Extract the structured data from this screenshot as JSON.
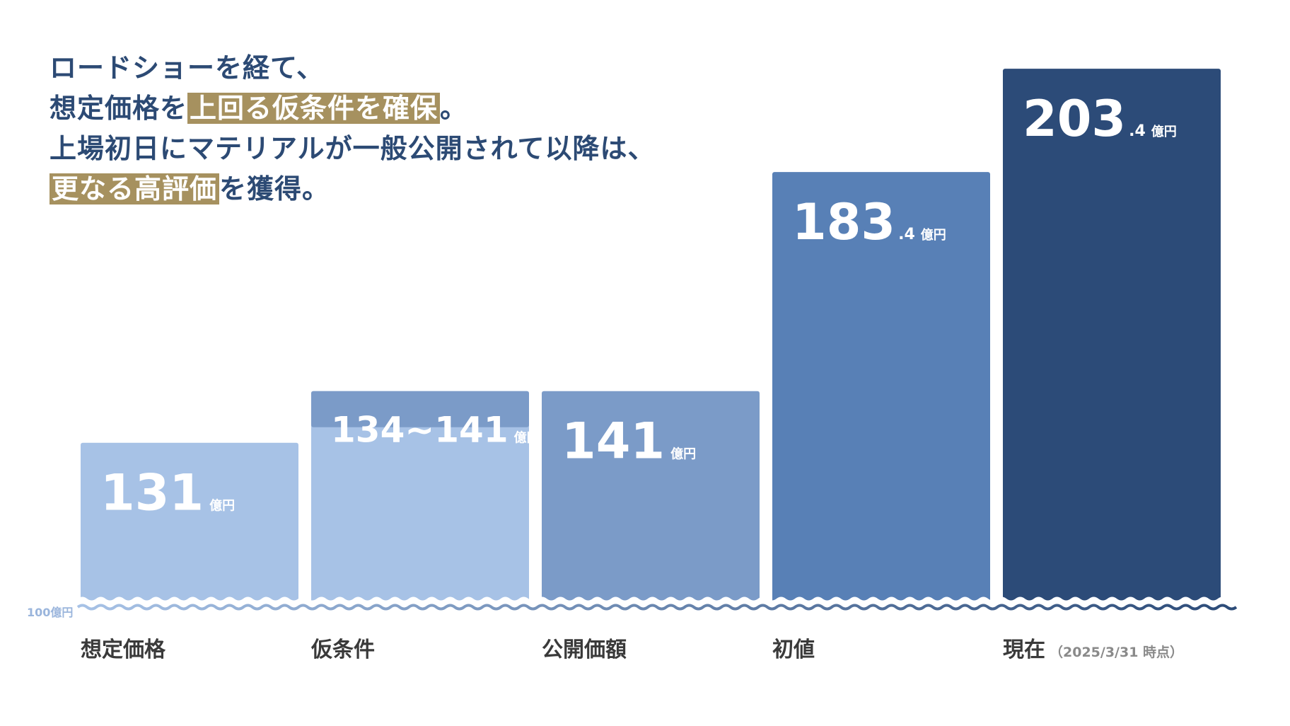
{
  "headline": {
    "line1": "ロードショーを経て、",
    "line2_pre": "想定価格を",
    "line2_hl": "上回る仮条件を確保",
    "line2_post": "。",
    "line3": "上場初日にマテリアルが一般公開されて以降は、",
    "line4_hl": "更なる高評価",
    "line4_post": "を獲得。"
  },
  "baseline_label": "100億円",
  "unit": "億円",
  "colors": {
    "bar1": "#a7c2e6",
    "bar2": "#a7c2e6",
    "bar2_range": "#7b9bc8",
    "bar3": "#7b9bc8",
    "bar4": "#5880b6",
    "bar5": "#2c4b78",
    "headline": "#2c4a74",
    "highlight": "#a6915f"
  },
  "chart_data": {
    "type": "bar",
    "baseline": 100,
    "categories": [
      "想定価格",
      "仮条件",
      "公開価額",
      "初値",
      "現在"
    ],
    "category_note": "（2025/3/31 時点）",
    "series": [
      {
        "values": [
          131,
          141,
          141,
          183.4,
          203.4
        ],
        "range_low": [
          null,
          134,
          null,
          null,
          null
        ],
        "labels_main": [
          "131",
          "134~141",
          "141",
          "183",
          "203"
        ],
        "labels_frac": [
          "",
          "",
          "",
          ".4",
          ".4"
        ]
      }
    ]
  }
}
